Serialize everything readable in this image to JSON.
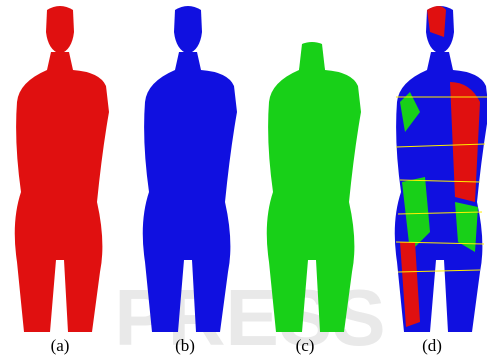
{
  "figure": {
    "watermark": "PRESS",
    "panels": [
      {
        "label": "(a)"
      },
      {
        "label": "(b)"
      },
      {
        "label": "(c)"
      },
      {
        "label": "(d)"
      }
    ]
  }
}
